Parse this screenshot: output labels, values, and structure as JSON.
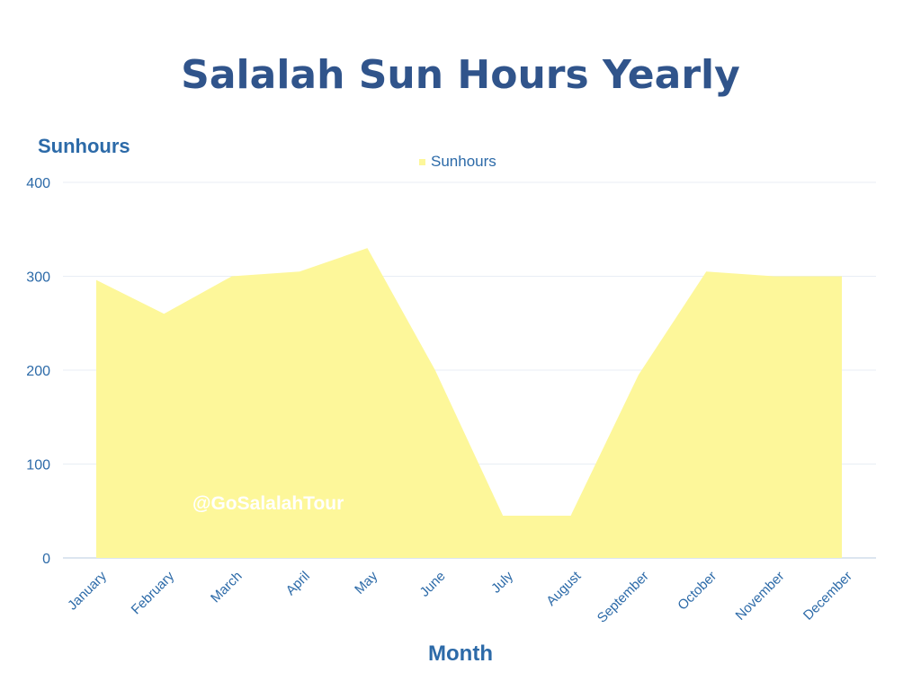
{
  "title": "Salalah Sun Hours Yearly",
  "watermark": "@GoSalalahTour",
  "legend": {
    "label": "Sunhours",
    "color": "#fdf79a"
  },
  "axes": {
    "ylabel": "Sunhours",
    "xlabel": "Month"
  },
  "colors": {
    "title": "#30548b",
    "axis_text": "#2c6aa8",
    "fill": "#fdf79a",
    "grid": "#e8eef5"
  },
  "chart_data": {
    "type": "area",
    "title": "Salalah Sun Hours Yearly",
    "xlabel": "Month",
    "ylabel": "Sunhours",
    "categories": [
      "January",
      "February",
      "March",
      "April",
      "May",
      "June",
      "July",
      "August",
      "September",
      "October",
      "November",
      "December"
    ],
    "series": [
      {
        "name": "Sunhours",
        "values": [
          296,
          260,
          300,
          305,
          330,
          200,
          45,
          45,
          195,
          305,
          300,
          300
        ]
      }
    ],
    "ylim": [
      0,
      400
    ],
    "yticks": [
      0,
      100,
      200,
      300,
      400
    ],
    "grid": true,
    "legend_position": "top-center"
  }
}
